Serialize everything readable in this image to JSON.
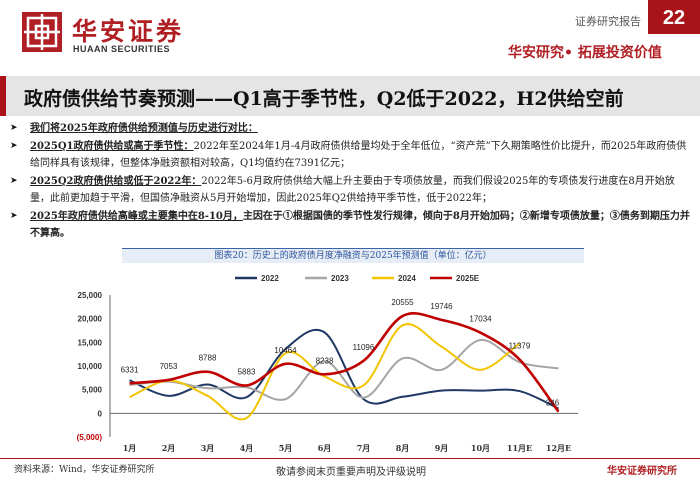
{
  "header": {
    "logo_cn": "华安证券",
    "logo_en": "HUAAN SECURITIES",
    "report_type": "证券研究报告",
    "page_number": "22",
    "slogan": "华安研究• 拓展投资价值",
    "brand_color": "#b01f24"
  },
  "title": "政府债供给节奏预测——Q1高于季节性，Q2低于2022，H2供给空前",
  "bullets": [
    {
      "segments": [
        {
          "text": "我们将2025年政府债供给预测值与历史进行对比：",
          "style": "bu"
        }
      ]
    },
    {
      "segments": [
        {
          "text": "2025Q1政府债供给或高于季节性：",
          "style": "bu"
        },
        {
          "text": "2022年至2024年1月-4月政府债供给量均处于全年低位，“资产荒”下久期策略性价比提升，而2025年政府债供给同样具有该规律，但整体净融资额相对较高，Q1均值约在7391亿元；",
          "style": "n"
        }
      ]
    },
    {
      "segments": [
        {
          "text": "2025Q2政府债供给或低于2022年：",
          "style": "bu"
        },
        {
          "text": "2022年5-6月政府债供给大幅上升主要由于专项债放量，而我们假设2025年的专项债发行进度在8月开始放量，此前更加趋于平滑，但国债净融资从5月开始增加，因此2025年Q2供给持平季节性，低于2022年；",
          "style": "n"
        }
      ]
    },
    {
      "segments": [
        {
          "text": "2025年政府债供给高峰或主要集中在8-10月，",
          "style": "bu"
        },
        {
          "text": "主因在于①根据国债的季节性发行规律，倾向于8月开始加码；②新增专项债放量；③债务到期压力并不算高。",
          "style": "b"
        }
      ]
    }
  ],
  "chart_data": {
    "type": "line",
    "title": "图表20：历史上的政府债月度净融资与2025年预测值（单位：亿元）",
    "categories": [
      "1月",
      "2月",
      "3月",
      "4月",
      "5月",
      "6月",
      "7月",
      "8月",
      "9月",
      "10月",
      "11月E",
      "12月E"
    ],
    "ylim": [
      -5000,
      25000
    ],
    "yticks": [
      -5000,
      0,
      5000,
      10000,
      15000,
      20000,
      25000
    ],
    "ytick_labels": [
      "(5,000)",
      "0",
      "5,000",
      "10,000",
      "15,000",
      "20,000",
      "25,000"
    ],
    "legend_position": "top",
    "grid": false,
    "series": [
      {
        "name": "2022",
        "color": "#1f3864",
        "values": [
          7000,
          3700,
          6100,
          3400,
          13600,
          17100,
          3000,
          3500,
          4800,
          4800,
          4700,
          1000
        ]
      },
      {
        "name": "2023",
        "color": "#a5a5a5",
        "values": [
          6000,
          6700,
          5300,
          5500,
          3000,
          11000,
          3300,
          11600,
          9200,
          15500,
          10800,
          9500
        ]
      },
      {
        "name": "2024",
        "color": "#f2c500",
        "values": [
          3400,
          6900,
          3700,
          -1000,
          12700,
          7800,
          5900,
          18600,
          14100,
          9200,
          14800,
          null
        ]
      },
      {
        "name": "2025E",
        "color": "#c00000",
        "values": [
          6331,
          7053,
          8788,
          5883,
          10464,
          8238,
          11096,
          20555,
          19746,
          17034,
          11379,
          346
        ]
      }
    ],
    "data_labels": {
      "series": "2025E",
      "labels": [
        "6331",
        "7053",
        "8788",
        "5883",
        "10464",
        "8238",
        "11096",
        "20555",
        "19746",
        "17034",
        "11379",
        "346"
      ]
    }
  },
  "footer": {
    "source": "资料来源：Wind，华安证券研究所",
    "disclaimer": "敬请参阅末页重要声明及评级说明",
    "brand": "华安证券研究所"
  }
}
